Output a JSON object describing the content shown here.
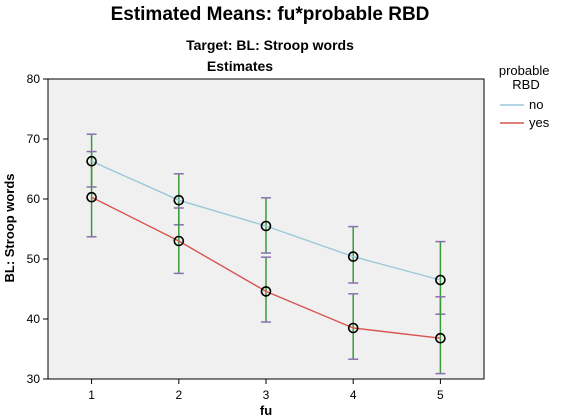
{
  "chart_data": {
    "type": "line",
    "title": "Estimated Means: fu*probable RBD",
    "subtitle": "Target: BL: Stroop words",
    "subtitle2": "Estimates",
    "xlabel": "fu",
    "ylabel": "BL: Stroop words",
    "x": [
      1,
      2,
      3,
      4,
      5
    ],
    "ylim": [
      30,
      80
    ],
    "yticks": [
      30,
      40,
      50,
      60,
      70,
      80
    ],
    "legend_title": "probable RBD",
    "legend_position": "right",
    "grid": false,
    "series": [
      {
        "name": "no",
        "color": "#9bc8d8",
        "values": [
          66.3,
          59.8,
          55.5,
          50.4,
          46.5
        ],
        "error_low": [
          62.0,
          55.7,
          51.0,
          46.0,
          40.8
        ],
        "error_high": [
          70.8,
          64.2,
          60.2,
          55.4,
          52.9
        ]
      },
      {
        "name": "yes",
        "color": "#d9534f",
        "values": [
          60.3,
          53.0,
          44.6,
          38.5,
          36.8
        ],
        "error_low": [
          53.7,
          47.6,
          39.5,
          33.3,
          30.9
        ],
        "error_high": [
          67.9,
          58.5,
          50.3,
          44.2,
          43.7
        ]
      }
    ],
    "errorbar_color": "#3a9a3a",
    "errorcap_color": "#8a6fb0"
  }
}
